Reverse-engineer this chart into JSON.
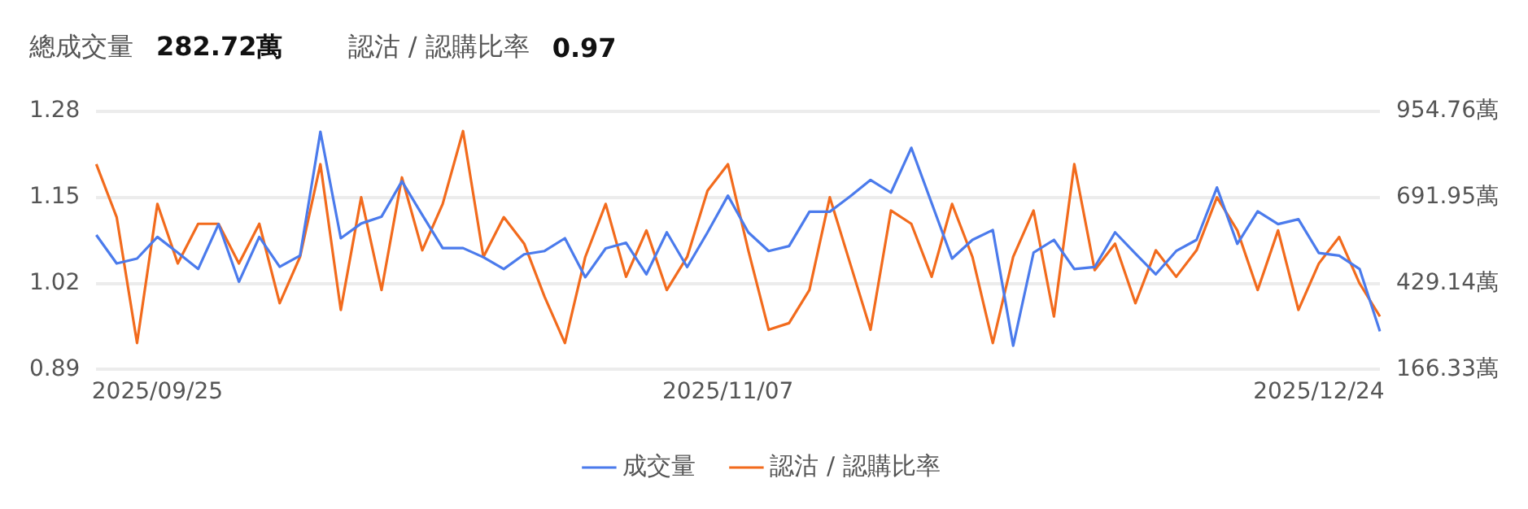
{
  "chart_data": {
    "type": "line",
    "annotations": [
      "總成交量",
      "282.72萬",
      "認沽 / 認購比率",
      "0.97"
    ],
    "categories": [
      null,
      null,
      null,
      "2025/09/25",
      null,
      null,
      null,
      null,
      null,
      null,
      null,
      null,
      null,
      null,
      null,
      null,
      null,
      null,
      null,
      null,
      null,
      null,
      null,
      null,
      null,
      null,
      null,
      null,
      null,
      null,
      null,
      "2025/11/07",
      null,
      null,
      null,
      null,
      null,
      null,
      null,
      null,
      null,
      null,
      null,
      null,
      null,
      null,
      null,
      null,
      null,
      null,
      null,
      null,
      null,
      null,
      null,
      null,
      null,
      null,
      null,
      null,
      "2025/12/24",
      null,
      null,
      null
    ],
    "series": [
      {
        "name": "成交量",
        "color": "#4b7bec",
        "axis": "y2",
        "values": [
          577,
          490,
          505,
          571,
          523,
          473,
          610,
          434,
          571,
          480,
          514,
          892,
          567,
          612,
          633,
          741,
          638,
          537,
          537,
          509,
          473,
          518,
          528,
          567,
          448,
          536,
          553,
          457,
          585,
          479,
          585,
          697,
          585,
          528,
          543,
          648,
          648,
          695,
          745,
          706,
          843,
          674,
          505,
          562,
          592,
          239,
          523,
          562,
          473,
          479,
          585,
          520,
          457,
          528,
          562,
          722,
          550,
          649,
          610,
          625,
          522,
          514,
          473,
          283
        ]
      },
      {
        "name": "認沽 / 認購比率",
        "color": "#f26b1d",
        "values": [
          1.2,
          1.12,
          0.93,
          1.14,
          1.05,
          1.11,
          1.11,
          1.05,
          1.11,
          0.99,
          1.06,
          1.2,
          0.98,
          1.15,
          1.01,
          1.18,
          1.07,
          1.14,
          1.25,
          1.06,
          1.12,
          1.08,
          1.0,
          0.93,
          1.06,
          1.14,
          1.03,
          1.1,
          1.01,
          1.06,
          1.16,
          1.2,
          1.07,
          0.95,
          0.96,
          1.01,
          1.15,
          1.05,
          0.95,
          1.13,
          1.11,
          1.03,
          1.14,
          1.06,
          0.93,
          1.06,
          1.13,
          0.97,
          1.2,
          1.04,
          1.08,
          0.99,
          1.07,
          1.03,
          1.07,
          1.15,
          1.1,
          1.01,
          1.1,
          0.98,
          1.05,
          1.09,
          1.02,
          0.97
        ]
      }
    ],
    "ylim": [
      0.89,
      1.28
    ],
    "yticks": [
      0.89,
      1.02,
      1.15,
      1.28
    ],
    "y2lim": [
      166.33,
      954.76
    ],
    "y2ticks": [
      {
        "value": 166.33,
        "label": "166.33萬"
      },
      {
        "value": 429.14,
        "label": "429.14萬"
      },
      {
        "value": 691.95,
        "label": "691.95萬"
      },
      {
        "value": 954.76,
        "label": "954.76萬"
      }
    ],
    "grid": "y",
    "legend": "bottom",
    "marker": "none",
    "line_style": "solid"
  }
}
